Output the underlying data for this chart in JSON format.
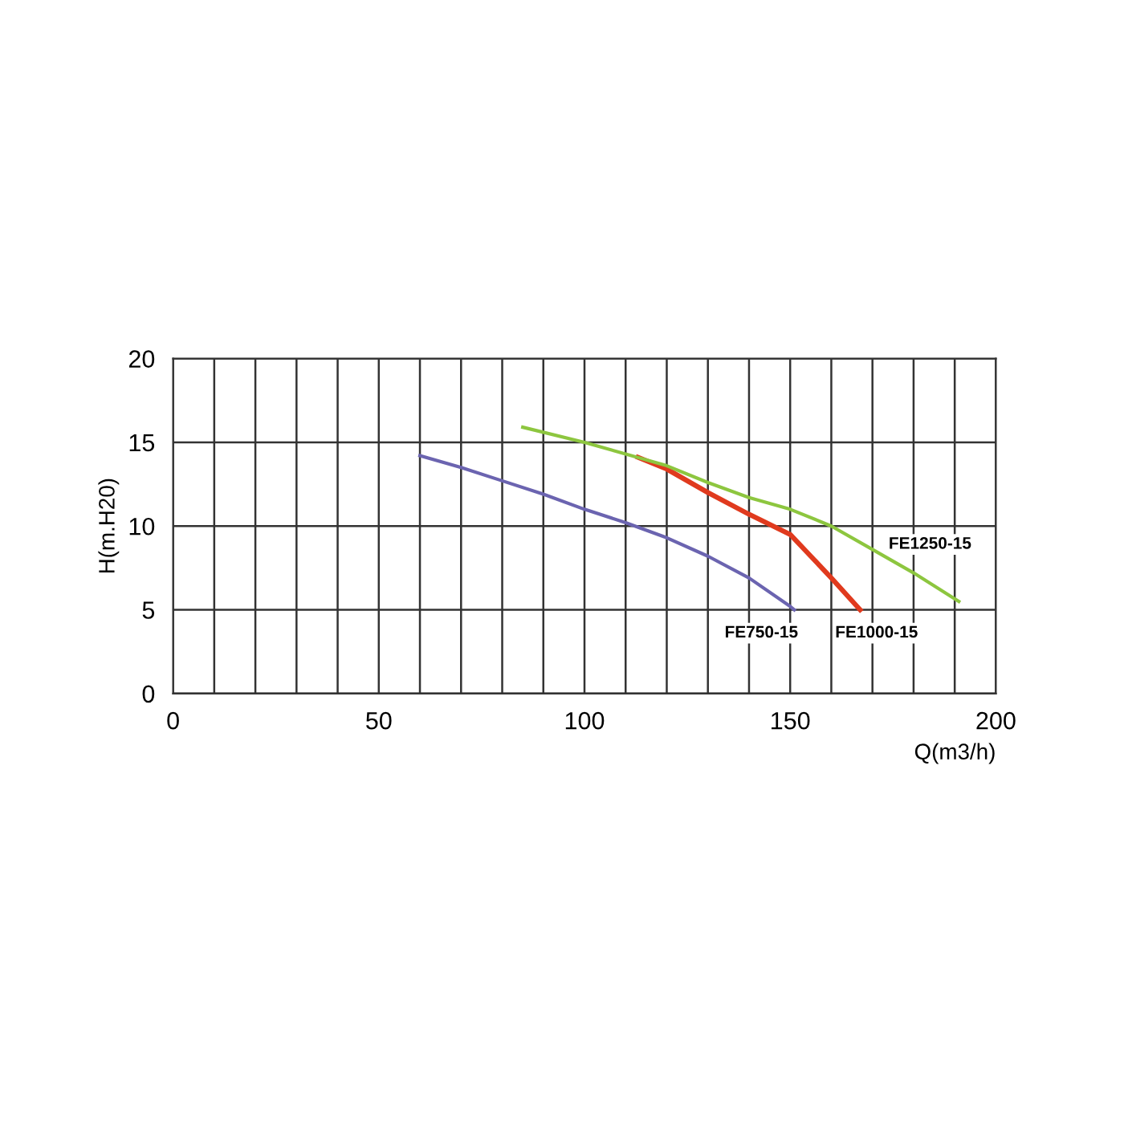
{
  "chart_data": {
    "type": "line",
    "xlabel": "Q(m3/h)",
    "ylabel": "H(m.H20)",
    "xlim": [
      0,
      200
    ],
    "ylim": [
      0,
      20
    ],
    "xticks": [
      0,
      {
        "value": 10,
        "label": null
      },
      {
        "value": 20,
        "label": null
      },
      {
        "value": 30,
        "label": null
      },
      {
        "value": 40,
        "label": null
      },
      50,
      {
        "value": 60,
        "label": null
      },
      {
        "value": 70,
        "label": null
      },
      {
        "value": 80,
        "label": null
      },
      {
        "value": 90,
        "label": null
      },
      100,
      {
        "value": 110,
        "label": null
      },
      {
        "value": 120,
        "label": null
      },
      {
        "value": 130,
        "label": null
      },
      {
        "value": 140,
        "label": null
      },
      150,
      {
        "value": 160,
        "label": null
      },
      {
        "value": 170,
        "label": null
      },
      {
        "value": 180,
        "label": null
      },
      {
        "value": 190,
        "label": null
      },
      200
    ],
    "yticks": [
      0,
      5,
      10,
      15,
      20
    ],
    "grid": true,
    "legend": false,
    "marker": "none",
    "line_style": "solid",
    "series": [
      {
        "name": "FE750-15",
        "color": "#6b64b0",
        "x": [
          60,
          70,
          80,
          90,
          100,
          110,
          120,
          130,
          140,
          150,
          151
        ],
        "values": [
          14.2,
          13.5,
          12.7,
          11.9,
          11.0,
          10.2,
          9.3,
          8.2,
          6.9,
          5.2,
          5.0
        ]
      },
      {
        "name": "FE1000-15",
        "color": "#e03a1e",
        "x": [
          113,
          120,
          130,
          140,
          150,
          160,
          167
        ],
        "values": [
          14.1,
          13.4,
          12.0,
          10.7,
          9.5,
          6.9,
          5.0
        ]
      },
      {
        "name": "FE1250-15",
        "color": "#8dc63f",
        "x": [
          85,
          100,
          120,
          130,
          140,
          150,
          160,
          170,
          180,
          191
        ],
        "values": [
          15.9,
          15.0,
          13.6,
          12.6,
          11.7,
          11.0,
          10.0,
          8.6,
          7.2,
          5.5
        ]
      }
    ]
  }
}
